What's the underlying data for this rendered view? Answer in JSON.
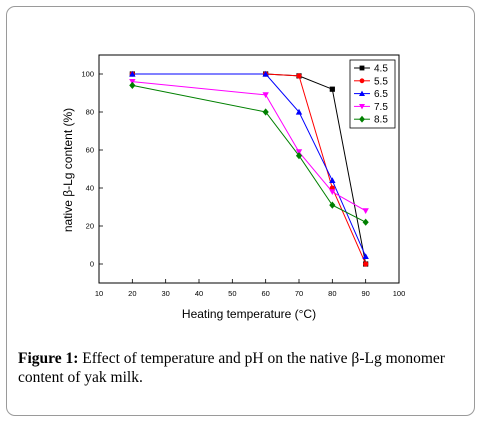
{
  "caption": {
    "label": "Figure 1:",
    "text": " Effect of temperature and pH on the native β-Lg monomer content of yak milk."
  },
  "chart_data": {
    "type": "line",
    "xlabel": "Heating temperature (°C)",
    "ylabel": "native β-Lg content (%)",
    "xlim": [
      10,
      100
    ],
    "ylim": [
      -10,
      110
    ],
    "xticks": [
      10,
      20,
      30,
      40,
      50,
      60,
      70,
      80,
      90,
      100
    ],
    "yticks": [
      0,
      20,
      40,
      60,
      80,
      100
    ],
    "x": [
      20,
      60,
      70,
      80,
      90
    ],
    "legend_position": "top-right",
    "series": [
      {
        "name": "4.5",
        "color": "#000000",
        "marker": "square",
        "values": [
          100,
          100,
          99,
          92,
          0
        ]
      },
      {
        "name": "5.5",
        "color": "#ff0000",
        "marker": "circle",
        "values": [
          100,
          100,
          99,
          40,
          0
        ]
      },
      {
        "name": "6.5",
        "color": "#0000ff",
        "marker": "triangle-up",
        "values": [
          100,
          100,
          80,
          44,
          4
        ]
      },
      {
        "name": "7.5",
        "color": "#ff00ff",
        "marker": "triangle-down",
        "values": [
          96,
          89,
          59,
          38,
          28
        ]
      },
      {
        "name": "8.5",
        "color": "#008000",
        "marker": "diamond",
        "values": [
          94,
          80,
          57,
          31,
          22
        ]
      }
    ]
  }
}
